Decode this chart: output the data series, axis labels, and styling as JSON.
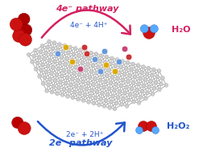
{
  "background_color": "#ffffff",
  "4e_pathway_text": "4e⁻ pathway",
  "2e_pathway_text": "2e⁻ pathway",
  "4e_reaction_text": "4e⁻ + 4H⁺",
  "2e_reaction_text": "2e⁻ + 2H⁺",
  "H2O_text": "H₂O",
  "H2O2_text": "H₂O₂",
  "pathway4_color": "#d42060",
  "pathway2_color": "#2255cc",
  "text4_color": "#d42060",
  "text2_color": "#2255cc",
  "H2O_color": "#d42060",
  "H2O2_color": "#2255cc",
  "O2_red": "#cc1111",
  "H_blue": "#55aaff",
  "graphene_node_color": "#d0d0d0",
  "graphene_edge_color": "#b0b0b0",
  "N_blue": "#6699dd",
  "S_yellow": "#ddaa00",
  "O_red_doped": "#cc3333",
  "P_pink": "#cc4477"
}
